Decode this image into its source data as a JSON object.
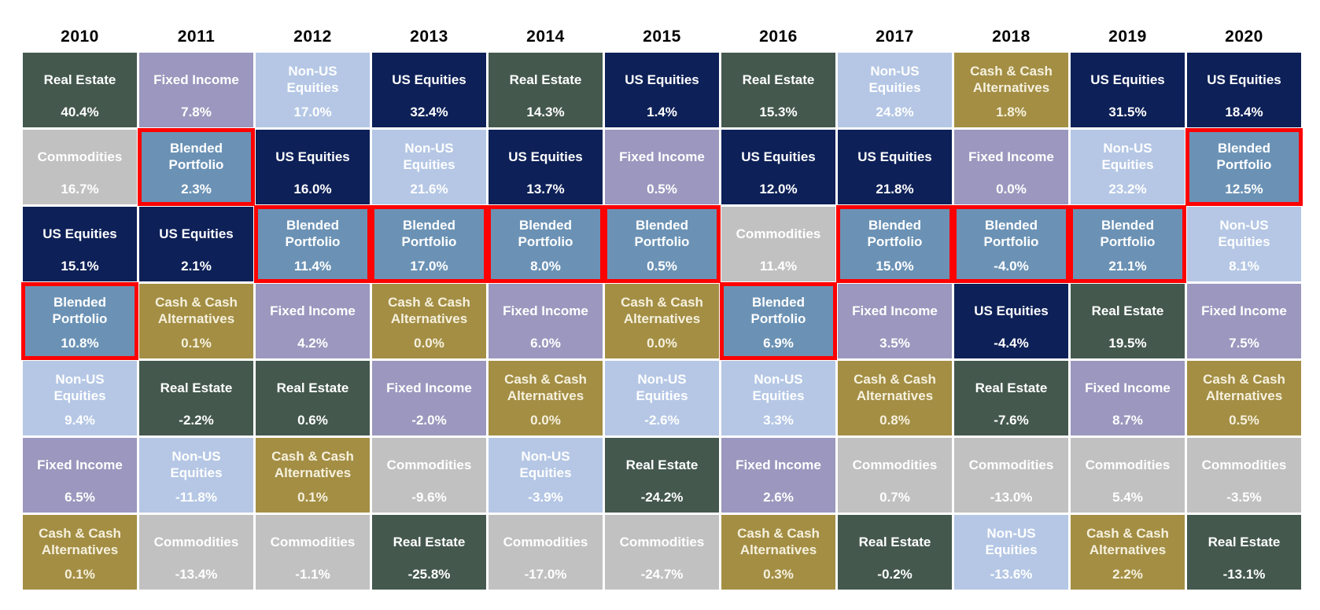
{
  "assets": {
    "real_estate": {
      "label": "Real Estate",
      "bg": "#44584e",
      "fg": "#ffffff"
    },
    "fixed_income": {
      "label": "Fixed Income",
      "bg": "#9b97be",
      "fg": "#ffffff"
    },
    "non_us_equities": {
      "label": "Non-US\nEquities",
      "bg": "#b5c7e5",
      "fg": "#ffffff"
    },
    "us_equities": {
      "label": "US Equities",
      "bg": "#0d2057",
      "fg": "#ffffff"
    },
    "cash": {
      "label": "Cash & Cash\nAlternatives",
      "bg": "#a38e44",
      "fg": "#f6f1de"
    },
    "commodities": {
      "label": "Commodities",
      "bg": "#c2c1c1",
      "fg": "#ffffff"
    },
    "blended": {
      "label": "Blended\nPortfolio",
      "bg": "#6b92b5",
      "fg": "#ffffff",
      "highlighted": true
    }
  },
  "style": {
    "highlight_border_color": "#fe0000",
    "background": "#ffffff",
    "year_text_color": "#000000"
  },
  "chart_data": {
    "type": "table",
    "title": "Asset class annual returns ranked by year (quilt chart), Blended Portfolio highlighted in red",
    "legend_position": "none",
    "years": [
      "2010",
      "2011",
      "2012",
      "2013",
      "2014",
      "2015",
      "2016",
      "2017",
      "2018",
      "2019",
      "2020"
    ],
    "columns": [
      {
        "year": "2010",
        "cells": [
          {
            "asset": "real_estate",
            "value": "40.4%"
          },
          {
            "asset": "commodities",
            "value": "16.7%"
          },
          {
            "asset": "us_equities",
            "value": "15.1%"
          },
          {
            "asset": "blended",
            "value": "10.8%"
          },
          {
            "asset": "non_us_equities",
            "value": "9.4%"
          },
          {
            "asset": "fixed_income",
            "value": "6.5%"
          },
          {
            "asset": "cash",
            "value": "0.1%"
          }
        ]
      },
      {
        "year": "2011",
        "cells": [
          {
            "asset": "fixed_income",
            "value": "7.8%"
          },
          {
            "asset": "blended",
            "value": "2.3%"
          },
          {
            "asset": "us_equities",
            "value": "2.1%"
          },
          {
            "asset": "cash",
            "value": "0.1%"
          },
          {
            "asset": "real_estate",
            "value": "-2.2%"
          },
          {
            "asset": "non_us_equities",
            "value": "-11.8%"
          },
          {
            "asset": "commodities",
            "value": "-13.4%"
          }
        ]
      },
      {
        "year": "2012",
        "cells": [
          {
            "asset": "non_us_equities",
            "value": "17.0%"
          },
          {
            "asset": "us_equities",
            "value": "16.0%"
          },
          {
            "asset": "blended",
            "value": "11.4%"
          },
          {
            "asset": "fixed_income",
            "value": "4.2%"
          },
          {
            "asset": "real_estate",
            "value": "0.6%"
          },
          {
            "asset": "cash",
            "value": "0.1%"
          },
          {
            "asset": "commodities",
            "value": "-1.1%"
          }
        ]
      },
      {
        "year": "2013",
        "cells": [
          {
            "asset": "us_equities",
            "value": "32.4%"
          },
          {
            "asset": "non_us_equities",
            "value": "21.6%"
          },
          {
            "asset": "blended",
            "value": "17.0%"
          },
          {
            "asset": "cash",
            "value": "0.0%"
          },
          {
            "asset": "fixed_income",
            "value": "-2.0%"
          },
          {
            "asset": "commodities",
            "value": "-9.6%"
          },
          {
            "asset": "real_estate",
            "value": "-25.8%"
          }
        ]
      },
      {
        "year": "2014",
        "cells": [
          {
            "asset": "real_estate",
            "value": "14.3%"
          },
          {
            "asset": "us_equities",
            "value": "13.7%"
          },
          {
            "asset": "blended",
            "value": "8.0%"
          },
          {
            "asset": "fixed_income",
            "value": "6.0%"
          },
          {
            "asset": "cash",
            "value": "0.0%"
          },
          {
            "asset": "non_us_equities",
            "value": "-3.9%"
          },
          {
            "asset": "commodities",
            "value": "-17.0%"
          }
        ]
      },
      {
        "year": "2015",
        "cells": [
          {
            "asset": "us_equities",
            "value": "1.4%"
          },
          {
            "asset": "fixed_income",
            "value": "0.5%"
          },
          {
            "asset": "blended",
            "value": "0.5%"
          },
          {
            "asset": "cash",
            "value": "0.0%"
          },
          {
            "asset": "non_us_equities",
            "value": "-2.6%"
          },
          {
            "asset": "real_estate",
            "value": "-24.2%"
          },
          {
            "asset": "commodities",
            "value": "-24.7%"
          }
        ]
      },
      {
        "year": "2016",
        "cells": [
          {
            "asset": "real_estate",
            "value": "15.3%"
          },
          {
            "asset": "us_equities",
            "value": "12.0%"
          },
          {
            "asset": "commodities",
            "value": "11.4%"
          },
          {
            "asset": "blended",
            "value": "6.9%"
          },
          {
            "asset": "non_us_equities",
            "value": "3.3%"
          },
          {
            "asset": "fixed_income",
            "value": "2.6%"
          },
          {
            "asset": "cash",
            "value": "0.3%"
          }
        ]
      },
      {
        "year": "2017",
        "cells": [
          {
            "asset": "non_us_equities",
            "value": "24.8%"
          },
          {
            "asset": "us_equities",
            "value": "21.8%"
          },
          {
            "asset": "blended",
            "value": "15.0%"
          },
          {
            "asset": "fixed_income",
            "value": "3.5%"
          },
          {
            "asset": "cash",
            "value": "0.8%"
          },
          {
            "asset": "commodities",
            "value": "0.7%"
          },
          {
            "asset": "real_estate",
            "value": "-0.2%"
          }
        ]
      },
      {
        "year": "2018",
        "cells": [
          {
            "asset": "cash",
            "value": "1.8%"
          },
          {
            "asset": "fixed_income",
            "value": "0.0%"
          },
          {
            "asset": "blended",
            "value": "-4.0%"
          },
          {
            "asset": "us_equities",
            "value": "-4.4%"
          },
          {
            "asset": "real_estate",
            "value": "-7.6%"
          },
          {
            "asset": "commodities",
            "value": "-13.0%"
          },
          {
            "asset": "non_us_equities",
            "value": "-13.6%"
          }
        ]
      },
      {
        "year": "2019",
        "cells": [
          {
            "asset": "us_equities",
            "value": "31.5%"
          },
          {
            "asset": "non_us_equities",
            "value": "23.2%"
          },
          {
            "asset": "blended",
            "value": "21.1%"
          },
          {
            "asset": "real_estate",
            "value": "19.5%"
          },
          {
            "asset": "fixed_income",
            "value": "8.7%"
          },
          {
            "asset": "commodities",
            "value": "5.4%"
          },
          {
            "asset": "cash",
            "value": "2.2%"
          }
        ]
      },
      {
        "year": "2020",
        "cells": [
          {
            "asset": "us_equities",
            "value": "18.4%"
          },
          {
            "asset": "blended",
            "value": "12.5%"
          },
          {
            "asset": "non_us_equities",
            "value": "8.1%"
          },
          {
            "asset": "fixed_income",
            "value": "7.5%"
          },
          {
            "asset": "cash",
            "value": "0.5%"
          },
          {
            "asset": "commodities",
            "value": "-3.5%"
          },
          {
            "asset": "real_estate",
            "value": "-13.1%"
          }
        ]
      }
    ]
  }
}
